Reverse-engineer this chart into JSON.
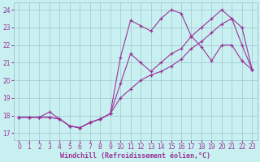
{
  "xlabel": "Windchill (Refroidissement éolien,°C)",
  "bg_color": "#c8f0f0",
  "line_color": "#993399",
  "marker": "+",
  "markersize": 3,
  "linewidth": 0.8,
  "xlim": [
    -0.5,
    23.5
  ],
  "ylim": [
    16.6,
    24.4
  ],
  "yticks": [
    17,
    18,
    19,
    20,
    21,
    22,
    23,
    24
  ],
  "xticks": [
    0,
    1,
    2,
    3,
    4,
    5,
    6,
    7,
    8,
    9,
    10,
    11,
    12,
    13,
    14,
    15,
    16,
    17,
    18,
    19,
    20,
    21,
    22,
    23
  ],
  "grid_color": "#99bbcc",
  "series1_x": [
    0,
    1,
    2,
    3,
    4,
    5,
    6,
    7,
    8,
    9,
    10,
    11,
    12,
    13,
    14,
    15,
    16,
    17,
    18,
    19,
    20,
    21,
    22,
    23
  ],
  "series1_y": [
    17.9,
    17.9,
    17.9,
    18.2,
    17.8,
    17.4,
    17.3,
    17.6,
    17.8,
    18.1,
    21.3,
    23.4,
    23.1,
    22.8,
    23.5,
    24.0,
    23.8,
    22.5,
    21.9,
    21.1,
    22.0,
    22.0,
    21.1,
    20.6
  ],
  "series2_x": [
    0,
    1,
    2,
    3,
    4,
    5,
    6,
    7,
    8,
    9,
    10,
    11,
    12,
    13,
    14,
    15,
    16,
    17,
    18,
    19,
    20,
    21,
    22,
    23
  ],
  "series2_y": [
    17.9,
    17.9,
    17.9,
    17.9,
    17.8,
    17.4,
    17.3,
    17.6,
    17.8,
    18.1,
    19.8,
    21.5,
    21.0,
    20.5,
    21.0,
    21.5,
    21.8,
    22.5,
    23.0,
    23.5,
    24.0,
    23.5,
    23.0,
    20.6
  ],
  "series3_x": [
    0,
    1,
    2,
    3,
    4,
    5,
    6,
    7,
    8,
    9,
    10,
    11,
    12,
    13,
    14,
    15,
    16,
    17,
    18,
    19,
    20,
    21,
    22,
    23
  ],
  "series3_y": [
    17.9,
    17.9,
    17.9,
    17.9,
    17.8,
    17.4,
    17.3,
    17.6,
    17.8,
    18.1,
    19.0,
    19.5,
    20.0,
    20.3,
    20.5,
    20.8,
    21.2,
    21.8,
    22.2,
    22.7,
    23.2,
    23.5,
    22.0,
    20.6
  ],
  "xlabel_fontsize": 6.0,
  "tick_fontsize": 5.5,
  "figwidth": 3.2,
  "figheight": 2.0,
  "dpi": 100
}
